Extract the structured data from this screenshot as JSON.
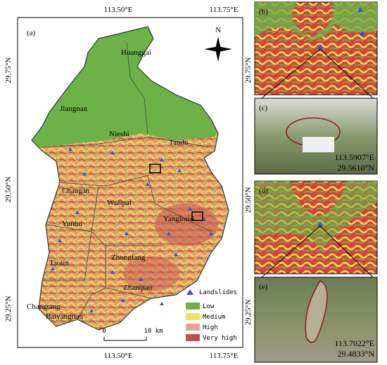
{
  "map": {
    "label": "(a)",
    "top_lon_labels": [
      "113.50°E",
      "113.75°E"
    ],
    "bottom_lon_labels": [
      "113.50°E",
      "113.75°E"
    ],
    "left_lat_labels": [
      "29.75°N",
      "29.50°N",
      "29.25°N"
    ],
    "north": "N",
    "towns": [
      "Huanggai",
      "Jiangnan",
      "Nieshi",
      "Tandu",
      "Changan",
      "Wulipai",
      "Yunhu",
      "Yanglousi",
      "Taolin",
      "Zhongfang",
      "Zhanqiao",
      "Changtang",
      "Baiyangtian"
    ],
    "legend": [
      "Landslides",
      "Low",
      "Medium",
      "High",
      "Very high"
    ],
    "scale": [
      "0",
      "10 km"
    ]
  },
  "insets": [
    {
      "label": "(b)",
      "lat_label": "29.75°N"
    },
    {
      "label": "(d)",
      "lat_label": "29.50°N"
    }
  ],
  "photos": [
    {
      "label": "(c)",
      "lon": "113.5907°E",
      "lat": "29.5610°N"
    },
    {
      "label": "(e)",
      "lon": "113.7022°E",
      "lat": "29.4833°N",
      "lat_axis": "29.25°N"
    }
  ]
}
